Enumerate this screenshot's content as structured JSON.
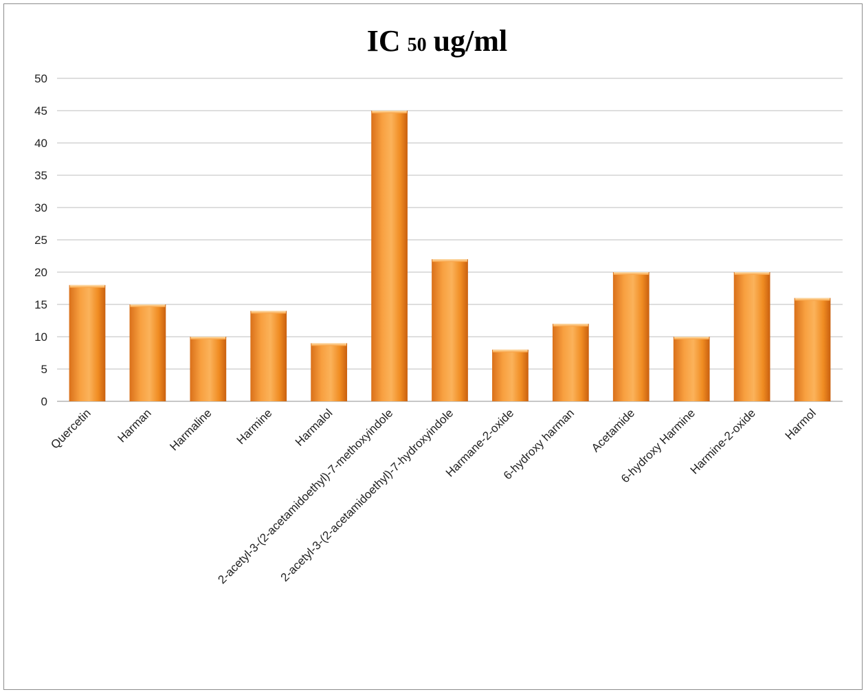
{
  "chart_data": {
    "type": "bar",
    "title_parts": [
      "IC",
      "50",
      "ug/ml"
    ],
    "title": "IC 50 ug/ml",
    "xlabel": "",
    "ylabel": "",
    "categories": [
      "Quercetin",
      "Harman",
      "Harmaline",
      "Harmine",
      "Harmalol",
      "2-acetyl-3-(2-acetamidoethyl)-7-methoxyindole",
      "2-acetyl-3-(2-acetamidoethyl)-7-hydroxyindole",
      "Harmane-2-oxide",
      "6-hydroxy harman",
      "Acetamide",
      "6-hydroxy Harmine",
      "Harmine-2-oxide",
      "Harmol"
    ],
    "values": [
      18,
      15,
      10,
      14,
      9,
      45,
      22,
      8,
      12,
      20,
      10,
      20,
      16
    ],
    "ylim": [
      0,
      50
    ],
    "yticks": [
      0,
      5,
      10,
      15,
      20,
      25,
      30,
      35,
      40,
      45,
      50
    ],
    "grid": true,
    "legend": "none",
    "bar_color": "#f7941d"
  }
}
